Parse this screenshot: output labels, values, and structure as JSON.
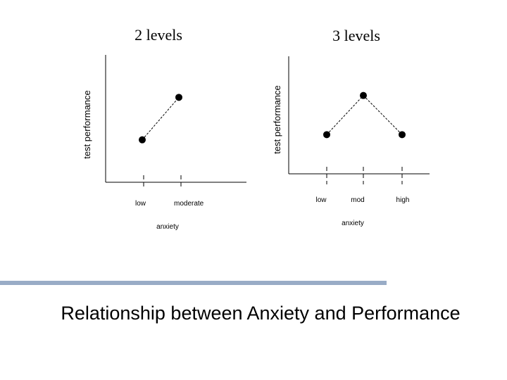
{
  "slide_title": "Relationship between Anxiety and Performance",
  "colors": {
    "divider": "#99acc6",
    "ink": "#000000"
  },
  "chart_data": [
    {
      "type": "line",
      "title": "2 levels",
      "xlabel": "anxiety",
      "ylabel": "test performance",
      "categories": [
        "low",
        "moderate"
      ],
      "series": [
        {
          "values": [
            1,
            2
          ]
        }
      ],
      "ylim": [
        0,
        3
      ],
      "line_style": "dotted",
      "grid": false,
      "legend": "none"
    },
    {
      "type": "line",
      "title": "3 levels",
      "xlabel": "anxiety",
      "ylabel": "test performance",
      "categories": [
        "low",
        "mod",
        "high"
      ],
      "series": [
        {
          "values": [
            1,
            2,
            1
          ]
        }
      ],
      "ylim": [
        0,
        3
      ],
      "line_style": "dotted",
      "grid": false,
      "legend": "none"
    }
  ]
}
